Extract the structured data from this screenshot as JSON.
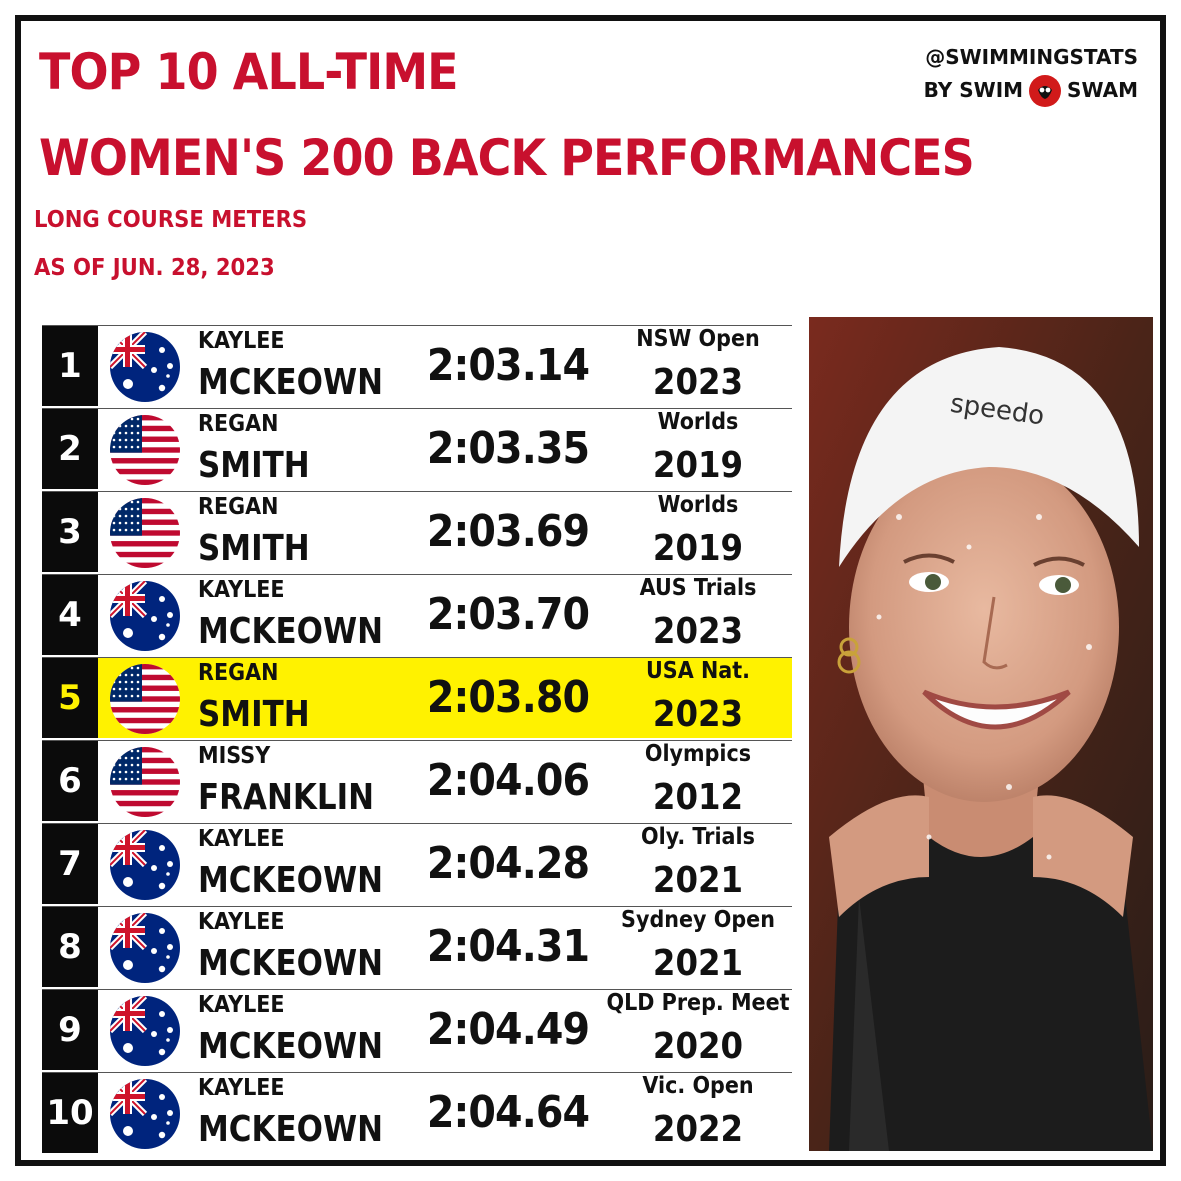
{
  "header": {
    "title_line1": "TOP 10 ALL-TIME",
    "title_line2": "WOMEN'S 200 BACK PERFORMANCES",
    "subtitle_line1": "LONG COURSE METERS",
    "subtitle_line2": "AS OF JUN. 28, 2023"
  },
  "brand": {
    "handle": "@SWIMMINGSTATS",
    "by_left": "BY SWIM",
    "by_right": "SWAM"
  },
  "colors": {
    "title_red": "#c8102e",
    "highlight_yellow": "#fff200",
    "rank_black": "#0b0b0b"
  },
  "rows": [
    {
      "rank": "1",
      "first": "KAYLEE",
      "last": "MCKEOWN",
      "time": "2:03.14",
      "meet": "NSW Open",
      "year": "2023",
      "flag": "australia-flag-icon",
      "highlight": false
    },
    {
      "rank": "2",
      "first": "REGAN",
      "last": "SMITH",
      "time": "2:03.35",
      "meet": "Worlds",
      "year": "2019",
      "flag": "usa-flag-icon",
      "highlight": false
    },
    {
      "rank": "3",
      "first": "REGAN",
      "last": "SMITH",
      "time": "2:03.69",
      "meet": "Worlds",
      "year": "2019",
      "flag": "usa-flag-icon",
      "highlight": false
    },
    {
      "rank": "4",
      "first": "KAYLEE",
      "last": "MCKEOWN",
      "time": "2:03.70",
      "meet": "AUS Trials",
      "year": "2023",
      "flag": "australia-flag-icon",
      "highlight": false
    },
    {
      "rank": "5",
      "first": "REGAN",
      "last": "SMITH",
      "time": "2:03.80",
      "meet": "USA Nat.",
      "year": "2023",
      "flag": "usa-flag-icon",
      "highlight": true
    },
    {
      "rank": "6",
      "first": "MISSY",
      "last": "FRANKLIN",
      "time": "2:04.06",
      "meet": "Olympics",
      "year": "2012",
      "flag": "usa-flag-icon",
      "highlight": false
    },
    {
      "rank": "7",
      "first": "KAYLEE",
      "last": "MCKEOWN",
      "time": "2:04.28",
      "meet": "Oly. Trials",
      "year": "2021",
      "flag": "australia-flag-icon",
      "highlight": false
    },
    {
      "rank": "8",
      "first": "KAYLEE",
      "last": "MCKEOWN",
      "time": "2:04.31",
      "meet": "Sydney Open",
      "year": "2021",
      "flag": "australia-flag-icon",
      "highlight": false
    },
    {
      "rank": "9",
      "first": "KAYLEE",
      "last": "MCKEOWN",
      "time": "2:04.49",
      "meet": "QLD Prep. Meet",
      "year": "2020",
      "flag": "australia-flag-icon",
      "highlight": false
    },
    {
      "rank": "10",
      "first": "KAYLEE",
      "last": "MCKEOWN",
      "time": "2:04.64",
      "meet": "Vic. Open",
      "year": "2022",
      "flag": "australia-flag-icon",
      "highlight": false
    }
  ],
  "photo": {
    "cap_text": "speedo",
    "icon": "swimmer-portrait-photo"
  }
}
